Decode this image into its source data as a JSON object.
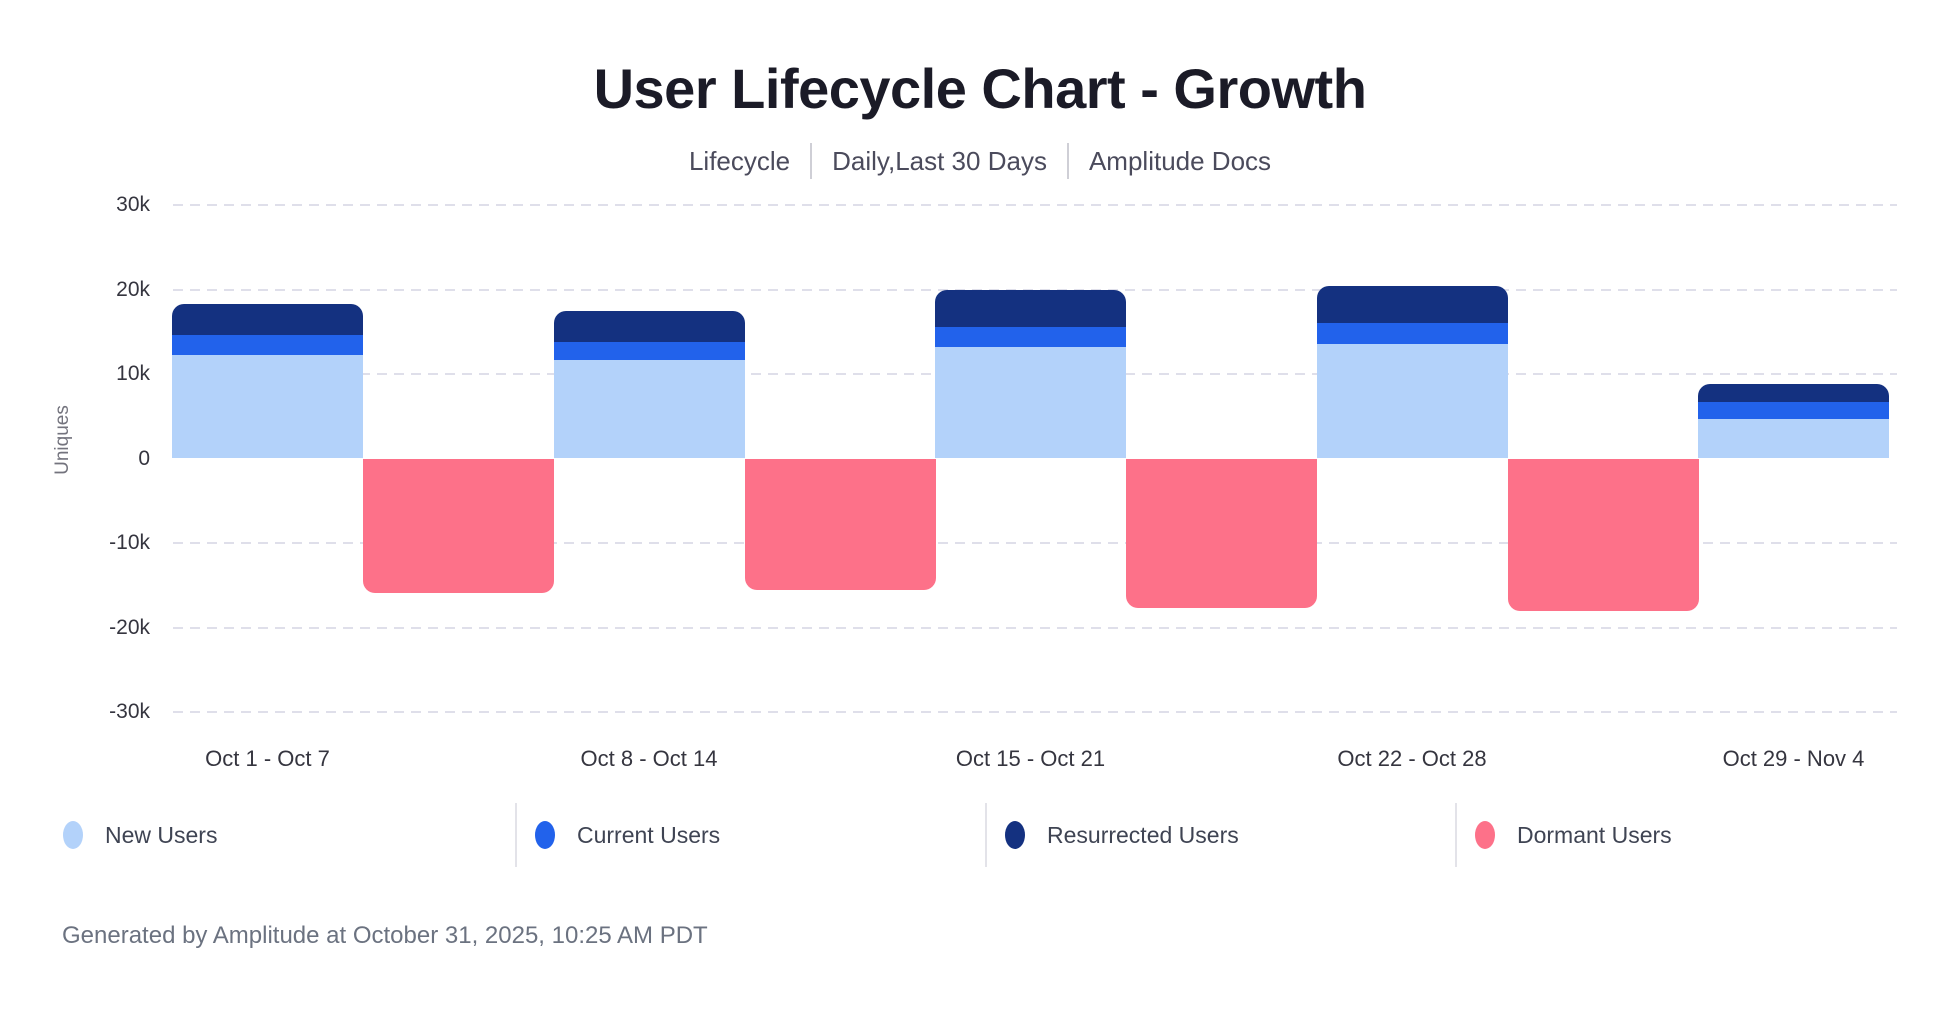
{
  "header": {
    "title": "User Lifecycle Chart - Growth",
    "subtitle_segments": [
      "Lifecycle",
      "Daily,Last 30 Days",
      "Amplitude Docs"
    ]
  },
  "chart_data": {
    "type": "bar",
    "stacked": true,
    "title": "User Lifecycle Chart - Growth",
    "xlabel": "",
    "ylabel": "Uniques",
    "ylim": [
      -30000,
      30000
    ],
    "grid": "horizontal dashed, no zero line visible",
    "legend_position": "bottom",
    "categories": [
      "Oct 1 - Oct 7",
      "Oct 8 - Oct 14",
      "Oct 15 - Oct 21",
      "Oct 22 - Oct 28",
      "Oct 29 - Nov 4"
    ],
    "series": [
      {
        "name": "New Users",
        "color": "#B3D2FA",
        "values": [
          12200,
          11700,
          13200,
          13600,
          4700
        ]
      },
      {
        "name": "Current Users",
        "color": "#2262EB",
        "values": [
          2400,
          2100,
          2400,
          2400,
          2000
        ]
      },
      {
        "name": "Resurrected Users",
        "color": "#143180",
        "values": [
          3700,
          3700,
          4300,
          4400,
          2100
        ]
      },
      {
        "name": "Dormant Users",
        "color": "#FD7189",
        "values": [
          -15900,
          -15600,
          -17700,
          -18100,
          null
        ]
      }
    ],
    "y_ticks": [
      {
        "label": "30k",
        "value": 30000,
        "gridline": true
      },
      {
        "label": "20k",
        "value": 20000,
        "gridline": true
      },
      {
        "label": "10k",
        "value": 10000,
        "gridline": true
      },
      {
        "label": "0",
        "value": 0,
        "gridline": false
      },
      {
        "label": "-10k",
        "value": -10000,
        "gridline": true
      },
      {
        "label": "-20k",
        "value": -20000,
        "gridline": true
      },
      {
        "label": "-30k",
        "value": -30000,
        "gridline": true
      }
    ]
  },
  "colors": {
    "background": "#FFFFFF",
    "title_text": "#1B1B27",
    "subtitle_text": "#4B4B5C",
    "axis_tick_text": "#35353F",
    "axis_title_text": "#73737D",
    "gridline": "#DFDFEA",
    "legend_text": "#3F4453",
    "footer_text": "#6B7280"
  },
  "footer": {
    "text": "Generated by Amplitude at October 31, 2025, 10:25 AM PDT"
  }
}
